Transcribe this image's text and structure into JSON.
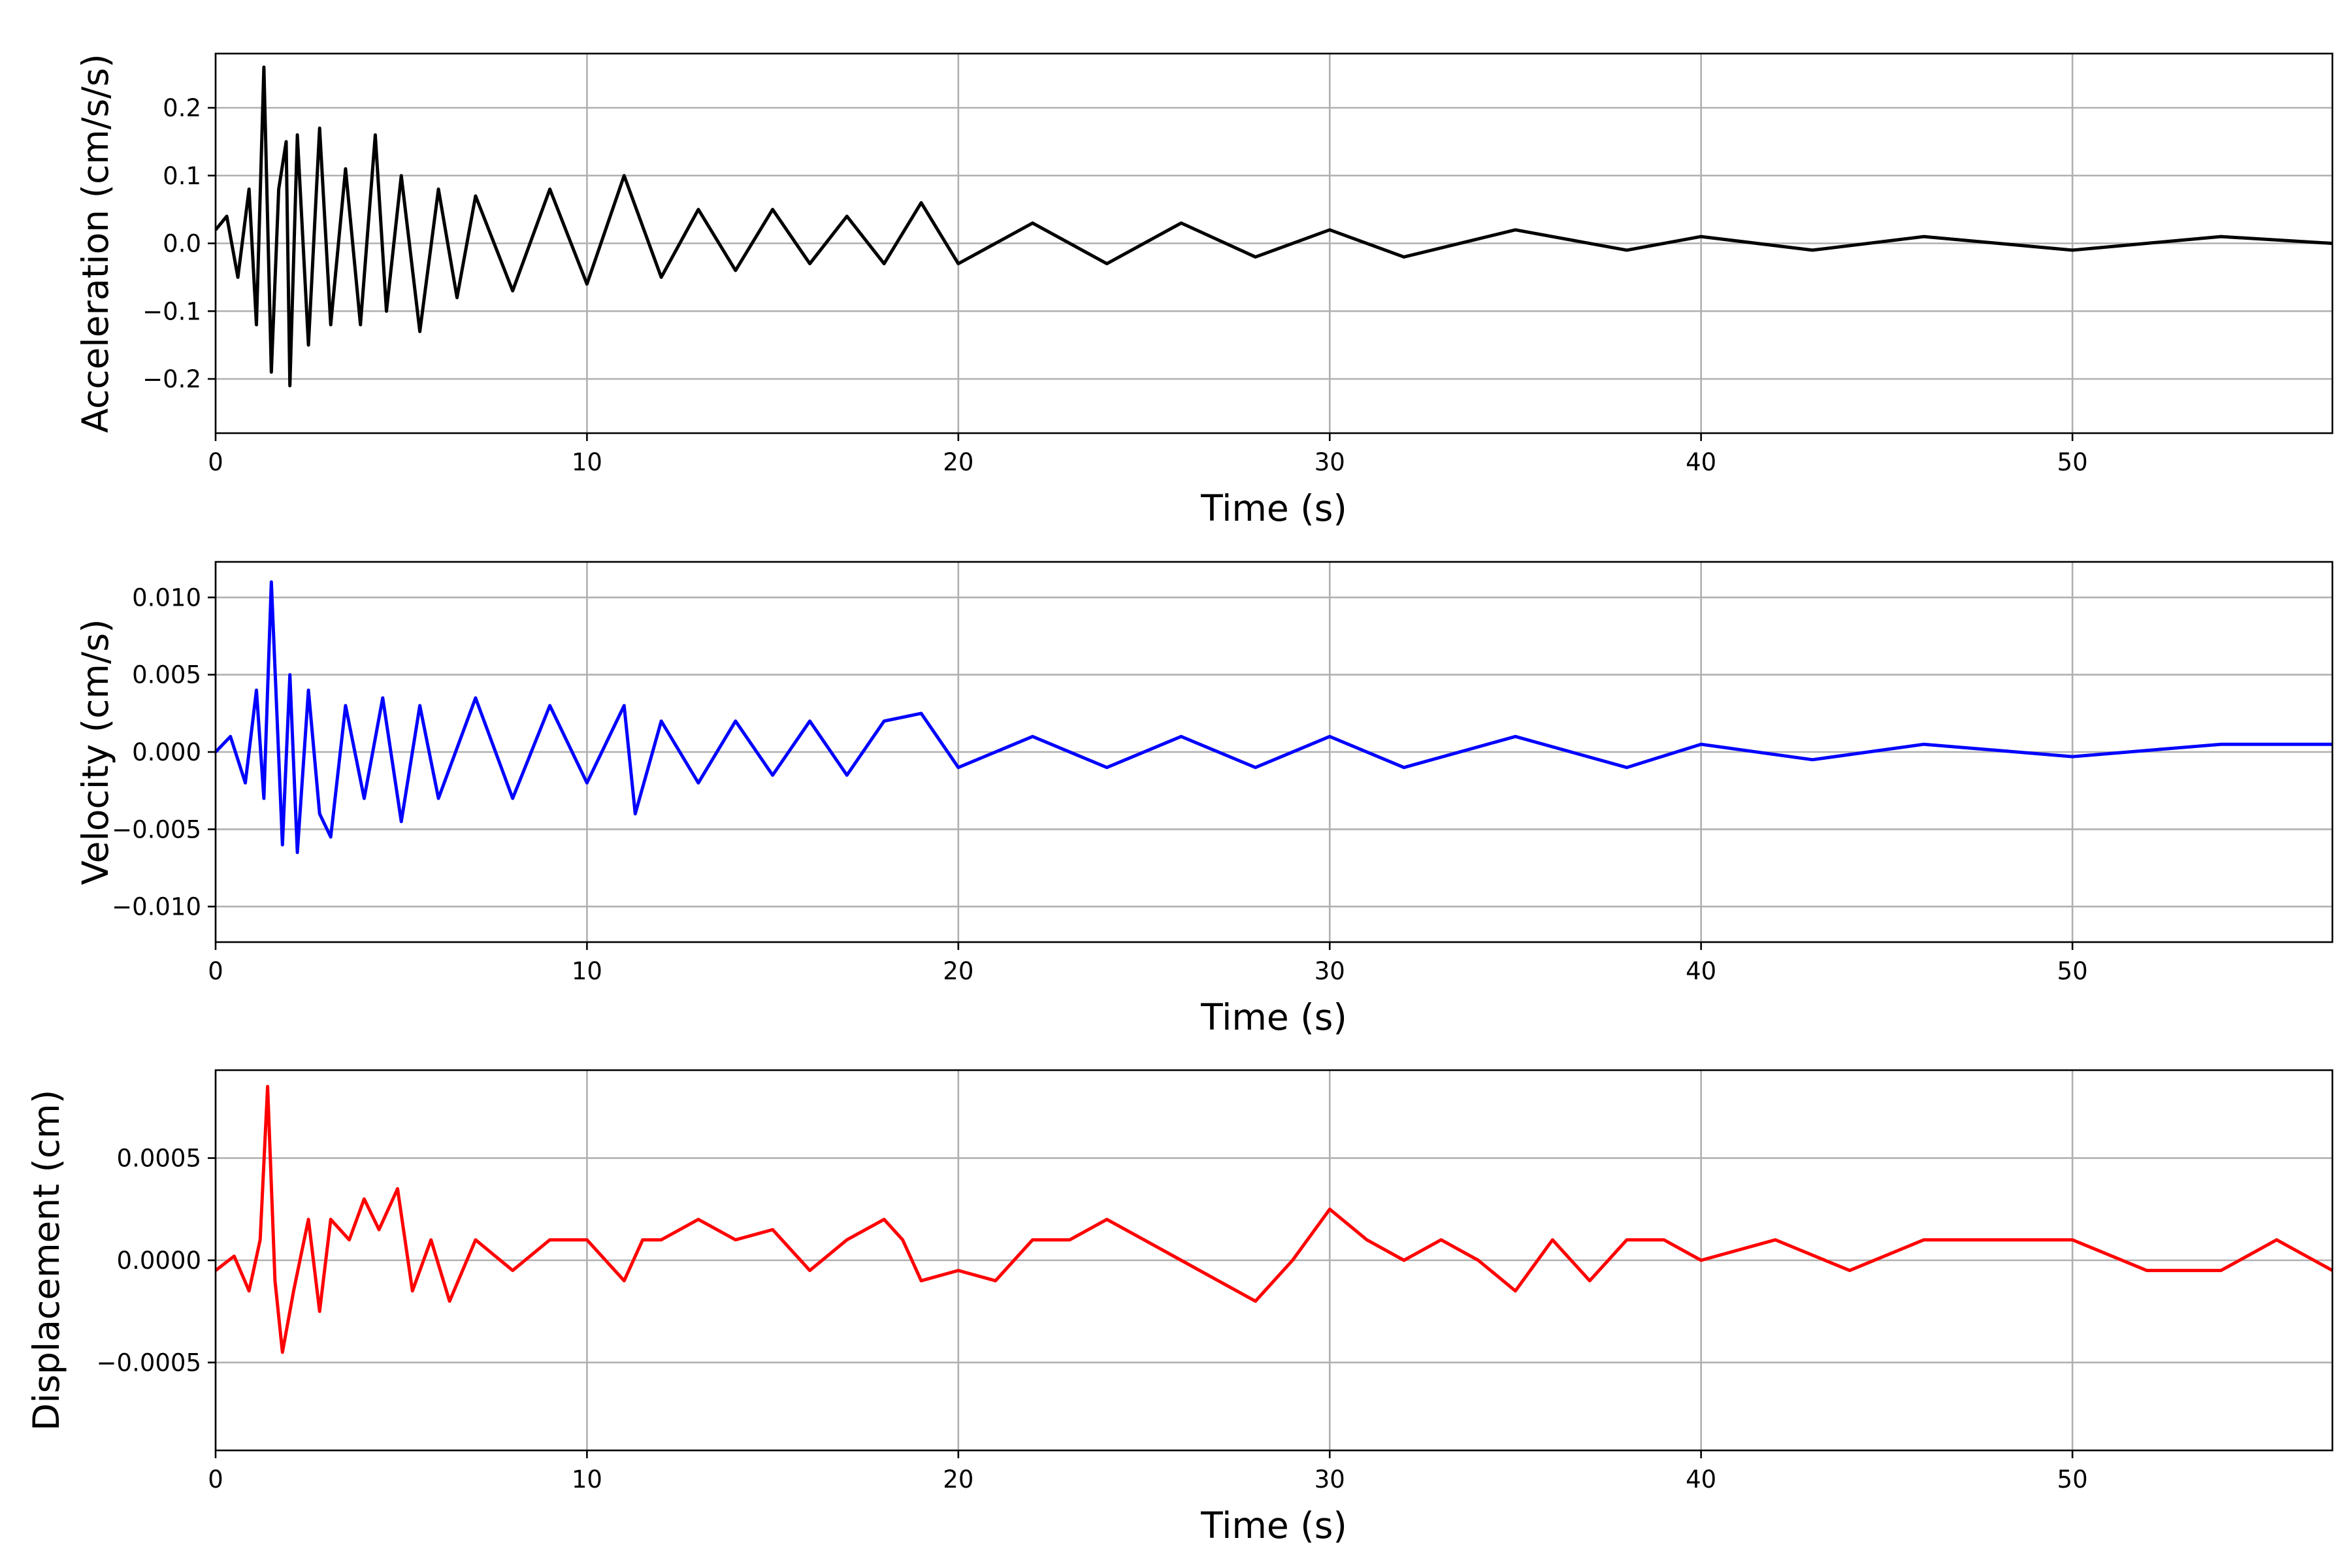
{
  "chart_data": [
    {
      "type": "line",
      "xlabel": "Time (s)",
      "ylabel": "Acceleration (cm/s/s)",
      "xlim": [
        0,
        57
      ],
      "ylim": [
        -0.28,
        0.28
      ],
      "xticks": [
        0,
        10,
        20,
        30,
        40,
        50
      ],
      "xtick_labels": [
        "0",
        "10",
        "20",
        "30",
        "40",
        "50"
      ],
      "yticks": [
        -0.2,
        -0.1,
        0.0,
        0.1,
        0.2
      ],
      "ytick_labels": [
        "−0.2",
        "−0.1",
        "0.0",
        "0.1",
        "0.2"
      ],
      "grid": true,
      "series": [
        {
          "color": "#000000",
          "x": [
            0,
            0.3,
            0.6,
            0.9,
            1.1,
            1.3,
            1.5,
            1.7,
            1.9,
            2.0,
            2.2,
            2.5,
            2.8,
            3.1,
            3.5,
            3.9,
            4.3,
            4.6,
            5.0,
            5.5,
            6.0,
            6.5,
            7.0,
            8.0,
            9.0,
            10.0,
            11.0,
            12.0,
            13.0,
            14.0,
            15.0,
            16.0,
            17.0,
            18.0,
            19.0,
            20.0,
            22.0,
            24.0,
            26.0,
            28.0,
            30.0,
            32.0,
            35.0,
            38.0,
            40.0,
            43.0,
            46.0,
            50.0,
            54.0,
            57.0
          ],
          "y": [
            0.02,
            0.04,
            -0.05,
            0.08,
            -0.12,
            0.26,
            -0.19,
            0.08,
            0.15,
            -0.21,
            0.16,
            -0.15,
            0.17,
            -0.12,
            0.11,
            -0.12,
            0.16,
            -0.1,
            0.1,
            -0.13,
            0.08,
            -0.08,
            0.07,
            -0.07,
            0.08,
            -0.06,
            0.1,
            -0.05,
            0.05,
            -0.04,
            0.05,
            -0.03,
            0.04,
            -0.03,
            0.06,
            -0.03,
            0.03,
            -0.03,
            0.03,
            -0.02,
            0.02,
            -0.02,
            0.02,
            -0.01,
            0.01,
            -0.01,
            0.01,
            -0.01,
            0.01,
            0.0
          ]
        }
      ]
    },
    {
      "type": "line",
      "xlabel": "Time (s)",
      "ylabel": "Velocity (cm/s)",
      "xlim": [
        0,
        57
      ],
      "ylim": [
        -0.0123,
        0.0123
      ],
      "xticks": [
        0,
        10,
        20,
        30,
        40,
        50
      ],
      "xtick_labels": [
        "0",
        "10",
        "20",
        "30",
        "40",
        "50"
      ],
      "yticks": [
        -0.01,
        -0.005,
        0.0,
        0.005,
        0.01
      ],
      "ytick_labels": [
        "−0.010",
        "−0.005",
        "0.000",
        "0.005",
        "0.010"
      ],
      "grid": true,
      "series": [
        {
          "color": "#0000ff",
          "x": [
            0,
            0.4,
            0.8,
            1.1,
            1.3,
            1.5,
            1.8,
            2.0,
            2.2,
            2.5,
            2.8,
            3.1,
            3.5,
            4.0,
            4.5,
            5.0,
            5.5,
            6.0,
            7.0,
            8.0,
            9.0,
            10.0,
            11.0,
            11.3,
            12.0,
            13.0,
            14.0,
            15.0,
            16.0,
            17.0,
            18.0,
            19.0,
            20.0,
            22.0,
            24.0,
            26.0,
            28.0,
            30.0,
            32.0,
            35.0,
            38.0,
            40.0,
            43.0,
            46.0,
            50.0,
            54.0,
            57.0
          ],
          "y": [
            0.0,
            0.001,
            -0.002,
            0.004,
            -0.003,
            0.011,
            -0.006,
            0.005,
            -0.0065,
            0.004,
            -0.004,
            -0.0055,
            0.003,
            -0.003,
            0.0035,
            -0.0045,
            0.003,
            -0.003,
            0.0035,
            -0.003,
            0.003,
            -0.002,
            0.003,
            -0.004,
            0.002,
            -0.002,
            0.002,
            -0.0015,
            0.002,
            -0.0015,
            0.002,
            0.0025,
            -0.001,
            0.001,
            -0.001,
            0.001,
            -0.001,
            0.001,
            -0.001,
            0.001,
            -0.001,
            0.0005,
            -0.0005,
            0.0005,
            -0.0003,
            0.0005,
            0.0005
          ]
        }
      ]
    },
    {
      "type": "line",
      "xlabel": "Time (s)",
      "ylabel": "Displacement (cm)",
      "xlim": [
        0,
        57
      ],
      "ylim": [
        -0.00093,
        0.00093
      ],
      "xticks": [
        0,
        10,
        20,
        30,
        40,
        50
      ],
      "xtick_labels": [
        "0",
        "10",
        "20",
        "30",
        "40",
        "50"
      ],
      "yticks": [
        -0.0005,
        0.0,
        0.0005
      ],
      "ytick_labels": [
        "−0.0005",
        "0.0000",
        "0.0005"
      ],
      "grid": true,
      "series": [
        {
          "color": "#ff0000",
          "x": [
            0,
            0.5,
            0.9,
            1.2,
            1.4,
            1.6,
            1.8,
            2.1,
            2.5,
            2.8,
            3.1,
            3.6,
            4.0,
            4.4,
            4.9,
            5.3,
            5.8,
            6.3,
            7.0,
            8.0,
            9.0,
            10.0,
            11.0,
            11.5,
            12.0,
            13.0,
            14.0,
            15.0,
            16.0,
            17.0,
            18.0,
            18.5,
            19.0,
            20.0,
            21.0,
            22.0,
            23.0,
            24.0,
            25.0,
            26.0,
            27.0,
            28.0,
            29.0,
            30.0,
            31.0,
            32.0,
            33.0,
            34.0,
            35.0,
            36.0,
            37.0,
            38.0,
            39.0,
            40.0,
            42.0,
            44.0,
            46.0,
            48.0,
            50.0,
            52.0,
            54.0,
            55.5,
            57.0
          ],
          "y": [
            -5e-05,
            2e-05,
            -0.00015,
            0.0001,
            0.00085,
            -0.0001,
            -0.00045,
            -0.00015,
            0.0002,
            -0.00025,
            0.0002,
            0.0001,
            0.0003,
            0.00015,
            0.00035,
            -0.00015,
            0.0001,
            -0.0002,
            0.0001,
            -5e-05,
            0.0001,
            0.0001,
            -0.0001,
            0.0001,
            0.0001,
            0.0002,
            0.0001,
            0.00015,
            -5e-05,
            0.0001,
            0.0002,
            0.0001,
            -0.0001,
            -5e-05,
            -0.0001,
            0.0001,
            0.0001,
            0.0002,
            0.0001,
            0.0,
            -0.0001,
            -0.0002,
            0.0,
            0.00025,
            0.0001,
            0.0,
            0.0001,
            0.0,
            -0.00015,
            0.0001,
            -0.0001,
            0.0001,
            0.0001,
            0.0,
            0.0001,
            -5e-05,
            0.0001,
            0.0001,
            0.0001,
            -5e-05,
            -5e-05,
            0.0001,
            -5e-05
          ]
        }
      ]
    }
  ]
}
